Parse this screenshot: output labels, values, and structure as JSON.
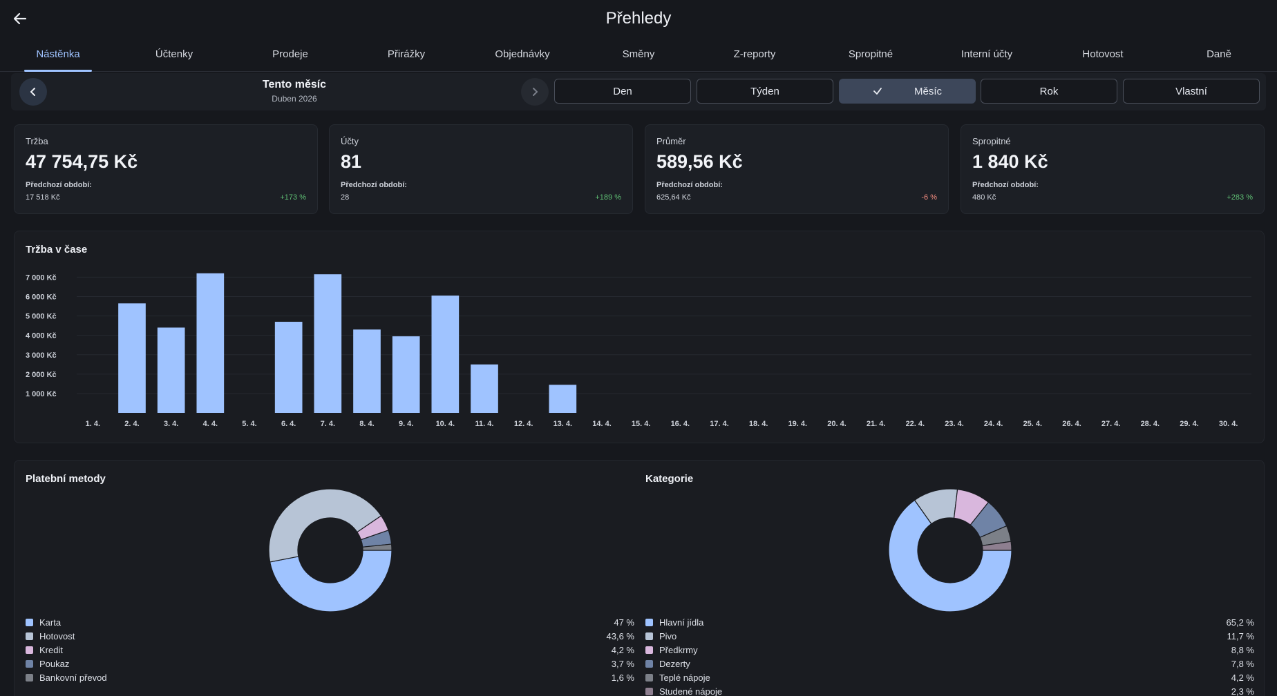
{
  "header": {
    "title": "Přehledy"
  },
  "tabs": [
    {
      "label": "Nástěnka",
      "active": true
    },
    {
      "label": "Účtenky"
    },
    {
      "label": "Prodeje"
    },
    {
      "label": "Přirážky"
    },
    {
      "label": "Objednávky"
    },
    {
      "label": "Směny"
    },
    {
      "label": "Z-reporty"
    },
    {
      "label": "Spropitné"
    },
    {
      "label": "Interní účty"
    },
    {
      "label": "Hotovost"
    },
    {
      "label": "Daně"
    }
  ],
  "period": {
    "title": "Tento měsíc",
    "subtitle": "Duben 2026",
    "options": [
      "Den",
      "Týden",
      "Měsíc",
      "Rok",
      "Vlastní"
    ],
    "selected": "Měsíc"
  },
  "kpis": [
    {
      "label": "Tržba",
      "value": "47 754,75 Kč",
      "prev_label": "Předchozí období:",
      "prev_value": "17 518 Kč",
      "change": "+173 %",
      "trend": "up"
    },
    {
      "label": "Účty",
      "value": "81",
      "prev_label": "Předchozí období:",
      "prev_value": "28",
      "change": "+189 %",
      "trend": "up"
    },
    {
      "label": "Průměr",
      "value": "589,56 Kč",
      "prev_label": "Předchozí období:",
      "prev_value": "625,64 Kč",
      "change": "-6 %",
      "trend": "down"
    },
    {
      "label": "Spropitné",
      "value": "1 840 Kč",
      "prev_label": "Předchozí období:",
      "prev_value": "480 Kč",
      "change": "+283 %",
      "trend": "up"
    }
  ],
  "revenue_chart": {
    "title": "Tržba v čase"
  },
  "payments": {
    "title": "Platební metody",
    "items": [
      {
        "label": "Karta",
        "pct": "47 %"
      },
      {
        "label": "Hotovost",
        "pct": "43,6 %"
      },
      {
        "label": "Kredit",
        "pct": "4,2 %"
      },
      {
        "label": "Poukaz",
        "pct": "3,7 %"
      },
      {
        "label": "Bankovní převod",
        "pct": "1,6 %"
      }
    ]
  },
  "categories": {
    "title": "Kategorie",
    "items": [
      {
        "label": "Hlavní jídla",
        "pct": "65,2 %"
      },
      {
        "label": "Pivo",
        "pct": "11,7 %"
      },
      {
        "label": "Předkrmy",
        "pct": "8,8 %"
      },
      {
        "label": "Dezerty",
        "pct": "7,8 %"
      },
      {
        "label": "Teplé nápoje",
        "pct": "4,2 %"
      },
      {
        "label": "Studené nápoje",
        "pct": "2,3 %"
      }
    ]
  },
  "colors": {
    "accent": "#9fc3ff",
    "positive": "#5fbf74",
    "negative": "#f08a7e",
    "pie_palette": [
      "#9fc3ff",
      "#b7c4d6",
      "#d9b7dd",
      "#6f83a6",
      "#7c8088",
      "#8e7f90"
    ]
  },
  "chart_data": [
    {
      "type": "bar",
      "title": "Tržba v čase",
      "categories": [
        "1. 4.",
        "2. 4.",
        "3. 4.",
        "4. 4.",
        "5. 4.",
        "6. 4.",
        "7. 4.",
        "8. 4.",
        "9. 4.",
        "10. 4.",
        "11. 4.",
        "12. 4.",
        "13. 4.",
        "14. 4.",
        "15. 4.",
        "16. 4.",
        "17. 4.",
        "18. 4.",
        "19. 4.",
        "20. 4.",
        "21. 4.",
        "22. 4.",
        "23. 4.",
        "24. 4.",
        "25. 4.",
        "26. 4.",
        "27. 4.",
        "28. 4.",
        "29. 4.",
        "30. 4."
      ],
      "values": [
        0,
        5650,
        4400,
        7200,
        0,
        4700,
        7150,
        4300,
        3950,
        6050,
        2500,
        0,
        1450,
        0,
        0,
        0,
        0,
        0,
        0,
        0,
        0,
        0,
        0,
        0,
        0,
        0,
        0,
        0,
        0,
        0
      ],
      "y_ticks": [
        1000,
        2000,
        3000,
        4000,
        5000,
        6000,
        7000
      ],
      "y_tick_labels": [
        "1 000 Kč",
        "2 000 Kč",
        "3 000 Kč",
        "4 000 Kč",
        "5 000 Kč",
        "6 000 Kč",
        "7 000 Kč"
      ],
      "ylim": [
        0,
        7300
      ],
      "grid": true
    },
    {
      "type": "pie",
      "title": "Platební metody",
      "labels": [
        "Karta",
        "Hotovost",
        "Kredit",
        "Poukaz",
        "Bankovní převod"
      ],
      "values": [
        47,
        43.6,
        4.2,
        3.7,
        1.6
      ]
    },
    {
      "type": "pie",
      "title": "Kategorie",
      "labels": [
        "Hlavní jídla",
        "Pivo",
        "Předkrmy",
        "Dezerty",
        "Teplé nápoje",
        "Studené nápoje"
      ],
      "values": [
        65.2,
        11.7,
        8.8,
        7.8,
        4.2,
        2.3
      ]
    }
  ]
}
